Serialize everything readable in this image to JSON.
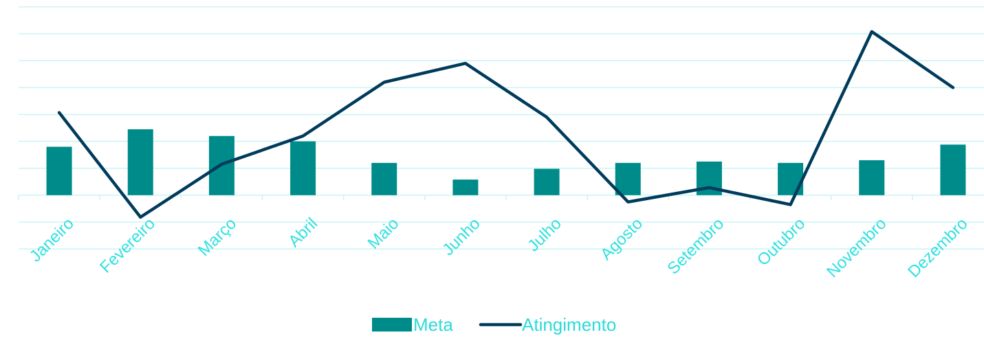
{
  "chart_data": {
    "type": "bar",
    "categories": [
      "Janeiro",
      "Fevereiro",
      "Março",
      "Abril",
      "Maio",
      "Junho",
      "Julho",
      "Agosto",
      "Setembro",
      "Outubro",
      "Novembro",
      "Dezembro"
    ],
    "series": [
      {
        "name": "Meta",
        "type": "bar",
        "color": "#008B8B",
        "values": [
          1.8,
          2.45,
          2.2,
          2.0,
          1.2,
          0.58,
          0.98,
          1.2,
          1.25,
          1.2,
          1.3,
          1.88
        ]
      },
      {
        "name": "Atingimento",
        "type": "line",
        "color": "#003B5C",
        "values": [
          3.07,
          -0.82,
          1.15,
          2.2,
          4.2,
          4.9,
          2.9,
          -0.25,
          0.28,
          -0.35,
          6.08,
          4.0
        ]
      }
    ],
    "ylim": [
      -2.0,
      7.0
    ],
    "grid": true,
    "legend": "bottom-center",
    "title": "",
    "xlabel": "",
    "ylabel": "",
    "colors": {
      "gridline": "#C8F4F4",
      "axis": "#C8F4F4",
      "tick_label": "#33E0E0",
      "legend_text": "#2CDADA"
    }
  }
}
